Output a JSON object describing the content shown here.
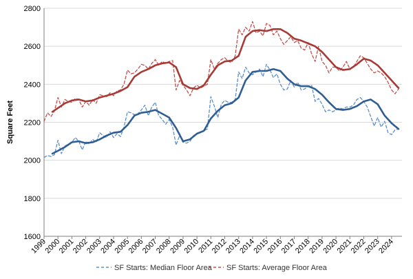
{
  "chart_data": {
    "type": "line",
    "ylabel": "Square Feet",
    "ylim": [
      1600,
      2800
    ],
    "yticks": [
      1600,
      1800,
      2000,
      2200,
      2400,
      2600,
      2800
    ],
    "xlim": [
      1999,
      2024.75
    ],
    "xticks": [
      "1999",
      "2000",
      "2001",
      "2002",
      "2003",
      "2004",
      "2005",
      "2006",
      "2007",
      "2008",
      "2009",
      "2010",
      "2011",
      "2012",
      "2013",
      "2014",
      "2015",
      "2016",
      "2017",
      "2018",
      "2019",
      "2020",
      "2021",
      "2022",
      "2023",
      "2024"
    ],
    "grid": "horizontal",
    "legend_position": "bottom",
    "series": [
      {
        "name": "SF Starts: Median Floor Area",
        "style": "dashed",
        "color": "#5b8ec9",
        "x": [
          1999.0,
          1999.25,
          1999.5,
          1999.75,
          2000.0,
          2000.25,
          2000.5,
          2000.75,
          2001.0,
          2001.25,
          2001.5,
          2001.75,
          2002.0,
          2002.25,
          2002.5,
          2002.75,
          2003.0,
          2003.25,
          2003.5,
          2003.75,
          2004.0,
          2004.25,
          2004.5,
          2004.75,
          2005.0,
          2005.25,
          2005.5,
          2005.75,
          2006.0,
          2006.25,
          2006.5,
          2006.75,
          2007.0,
          2007.25,
          2007.5,
          2007.75,
          2008.0,
          2008.25,
          2008.5,
          2008.75,
          2009.0,
          2009.25,
          2009.5,
          2009.75,
          2010.0,
          2010.25,
          2010.5,
          2010.75,
          2011.0,
          2011.25,
          2011.5,
          2011.75,
          2012.0,
          2012.25,
          2012.5,
          2012.75,
          2013.0,
          2013.25,
          2013.5,
          2013.75,
          2014.0,
          2014.25,
          2014.5,
          2014.75,
          2015.0,
          2015.25,
          2015.5,
          2015.75,
          2016.0,
          2016.25,
          2016.5,
          2016.75,
          2017.0,
          2017.25,
          2017.5,
          2017.75,
          2018.0,
          2018.25,
          2018.5,
          2018.75,
          2019.0,
          2019.25,
          2019.5,
          2019.75,
          2020.0,
          2020.25,
          2020.5,
          2020.75,
          2021.0,
          2021.25,
          2021.5,
          2021.75,
          2022.0,
          2022.25,
          2022.5,
          2022.75,
          2023.0,
          2023.25,
          2023.5,
          2023.75,
          2024.0,
          2024.25,
          2024.5
        ],
        "values": [
          2015,
          2025,
          2020,
          2030,
          2105,
          2035,
          2075,
          2085,
          2095,
          2120,
          2100,
          2055,
          2100,
          2085,
          2110,
          2095,
          2145,
          2130,
          2120,
          2150,
          2120,
          2140,
          2125,
          2175,
          2255,
          2250,
          2240,
          2245,
          2265,
          2290,
          2235,
          2280,
          2305,
          2235,
          2215,
          2190,
          2215,
          2175,
          2080,
          2130,
          2095,
          2090,
          2100,
          2130,
          2140,
          2150,
          2155,
          2165,
          2335,
          2285,
          2225,
          2295,
          2315,
          2305,
          2305,
          2320,
          2465,
          2430,
          2490,
          2460,
          2450,
          2465,
          2480,
          2440,
          2505,
          2475,
          2435,
          2455,
          2400,
          2370,
          2375,
          2420,
          2385,
          2410,
          2370,
          2375,
          2390,
          2395,
          2310,
          2325,
          2295,
          2255,
          2265,
          2255,
          2265,
          2275,
          2270,
          2280,
          2280,
          2290,
          2320,
          2330,
          2310,
          2280,
          2230,
          2180,
          2225,
          2175,
          2205,
          2145,
          2135,
          2160,
          2165
        ]
      },
      {
        "name": "SF Starts: Average Floor Area",
        "style": "dashed",
        "color": "#c0504d",
        "x": [
          1999.0,
          1999.25,
          1999.5,
          1999.75,
          2000.0,
          2000.25,
          2000.5,
          2000.75,
          2001.0,
          2001.25,
          2001.5,
          2001.75,
          2002.0,
          2002.25,
          2002.5,
          2002.75,
          2003.0,
          2003.25,
          2003.5,
          2003.75,
          2004.0,
          2004.25,
          2004.5,
          2004.75,
          2005.0,
          2005.25,
          2005.5,
          2005.75,
          2006.0,
          2006.25,
          2006.5,
          2006.75,
          2007.0,
          2007.25,
          2007.5,
          2007.75,
          2008.0,
          2008.25,
          2008.5,
          2008.75,
          2009.0,
          2009.25,
          2009.5,
          2009.75,
          2010.0,
          2010.25,
          2010.5,
          2010.75,
          2011.0,
          2011.25,
          2011.5,
          2011.75,
          2012.0,
          2012.25,
          2012.5,
          2012.75,
          2013.0,
          2013.25,
          2013.5,
          2013.75,
          2014.0,
          2014.25,
          2014.5,
          2014.75,
          2015.0,
          2015.25,
          2015.5,
          2015.75,
          2016.0,
          2016.25,
          2016.5,
          2016.75,
          2017.0,
          2017.25,
          2017.5,
          2017.75,
          2018.0,
          2018.25,
          2018.5,
          2018.75,
          2019.0,
          2019.25,
          2019.5,
          2019.75,
          2020.0,
          2020.25,
          2020.5,
          2020.75,
          2021.0,
          2021.25,
          2021.5,
          2021.75,
          2022.0,
          2022.25,
          2022.5,
          2022.75,
          2023.0,
          2023.25,
          2023.5,
          2023.75,
          2024.0,
          2024.25,
          2024.5
        ],
        "values": [
          2205,
          2250,
          2230,
          2260,
          2330,
          2280,
          2320,
          2310,
          2305,
          2325,
          2320,
          2280,
          2310,
          2290,
          2320,
          2300,
          2345,
          2340,
          2335,
          2355,
          2340,
          2365,
          2370,
          2400,
          2475,
          2455,
          2460,
          2480,
          2505,
          2500,
          2480,
          2510,
          2530,
          2500,
          2520,
          2510,
          2520,
          2525,
          2370,
          2420,
          2395,
          2370,
          2340,
          2380,
          2395,
          2380,
          2390,
          2400,
          2530,
          2480,
          2510,
          2530,
          2540,
          2520,
          2515,
          2550,
          2690,
          2660,
          2700,
          2680,
          2730,
          2670,
          2680,
          2655,
          2720,
          2710,
          2660,
          2680,
          2640,
          2610,
          2630,
          2650,
          2620,
          2630,
          2590,
          2580,
          2620,
          2560,
          2520,
          2600,
          2520,
          2500,
          2460,
          2490,
          2490,
          2470,
          2490,
          2520,
          2480,
          2490,
          2520,
          2550,
          2540,
          2510,
          2480,
          2460,
          2470,
          2460,
          2440,
          2410,
          2370,
          2350,
          2375
        ]
      },
      {
        "style": "smooth",
        "color": "#2e5e94",
        "x": [
          1999.6,
          2000.0,
          2000.5,
          2001.0,
          2001.5,
          2002.0,
          2002.5,
          2003.0,
          2003.5,
          2004.0,
          2004.5,
          2005.0,
          2005.5,
          2006.0,
          2006.5,
          2007.0,
          2007.5,
          2008.0,
          2008.5,
          2009.0,
          2009.5,
          2010.0,
          2010.5,
          2011.0,
          2011.5,
          2012.0,
          2012.5,
          2013.0,
          2013.5,
          2014.0,
          2014.5,
          2015.0,
          2015.5,
          2016.0,
          2016.5,
          2017.0,
          2017.5,
          2018.0,
          2018.5,
          2019.0,
          2019.5,
          2020.0,
          2020.5,
          2021.0,
          2021.5,
          2022.0,
          2022.5,
          2023.0,
          2023.5,
          2024.0,
          2024.5
        ],
        "values": [
          2035,
          2050,
          2070,
          2095,
          2100,
          2090,
          2095,
          2110,
          2130,
          2145,
          2150,
          2185,
          2235,
          2250,
          2255,
          2265,
          2245,
          2225,
          2170,
          2100,
          2110,
          2140,
          2155,
          2220,
          2260,
          2290,
          2300,
          2330,
          2420,
          2465,
          2470,
          2470,
          2480,
          2470,
          2430,
          2400,
          2390,
          2390,
          2375,
          2345,
          2305,
          2270,
          2265,
          2270,
          2285,
          2310,
          2320,
          2295,
          2235,
          2195,
          2165
        ]
      },
      {
        "style": "smooth",
        "color": "#a83a36",
        "x": [
          1999.6,
          2000.0,
          2000.5,
          2001.0,
          2001.5,
          2002.0,
          2002.5,
          2003.0,
          2003.5,
          2004.0,
          2004.5,
          2005.0,
          2005.5,
          2006.0,
          2006.5,
          2007.0,
          2007.5,
          2008.0,
          2008.5,
          2009.0,
          2009.5,
          2010.0,
          2010.5,
          2011.0,
          2011.5,
          2012.0,
          2012.5,
          2013.0,
          2013.5,
          2014.0,
          2014.5,
          2015.0,
          2015.5,
          2016.0,
          2016.5,
          2017.0,
          2017.5,
          2018.0,
          2018.5,
          2019.0,
          2019.5,
          2020.0,
          2020.5,
          2021.0,
          2021.5,
          2022.0,
          2022.5,
          2023.0,
          2023.5,
          2024.0,
          2024.5
        ],
        "values": [
          2255,
          2275,
          2300,
          2315,
          2320,
          2310,
          2315,
          2330,
          2340,
          2350,
          2365,
          2385,
          2440,
          2465,
          2480,
          2500,
          2510,
          2515,
          2490,
          2400,
          2380,
          2375,
          2395,
          2450,
          2500,
          2520,
          2525,
          2550,
          2650,
          2680,
          2685,
          2680,
          2690,
          2690,
          2670,
          2640,
          2630,
          2615,
          2600,
          2570,
          2530,
          2490,
          2475,
          2480,
          2505,
          2535,
          2525,
          2500,
          2460,
          2420,
          2380
        ]
      }
    ]
  }
}
